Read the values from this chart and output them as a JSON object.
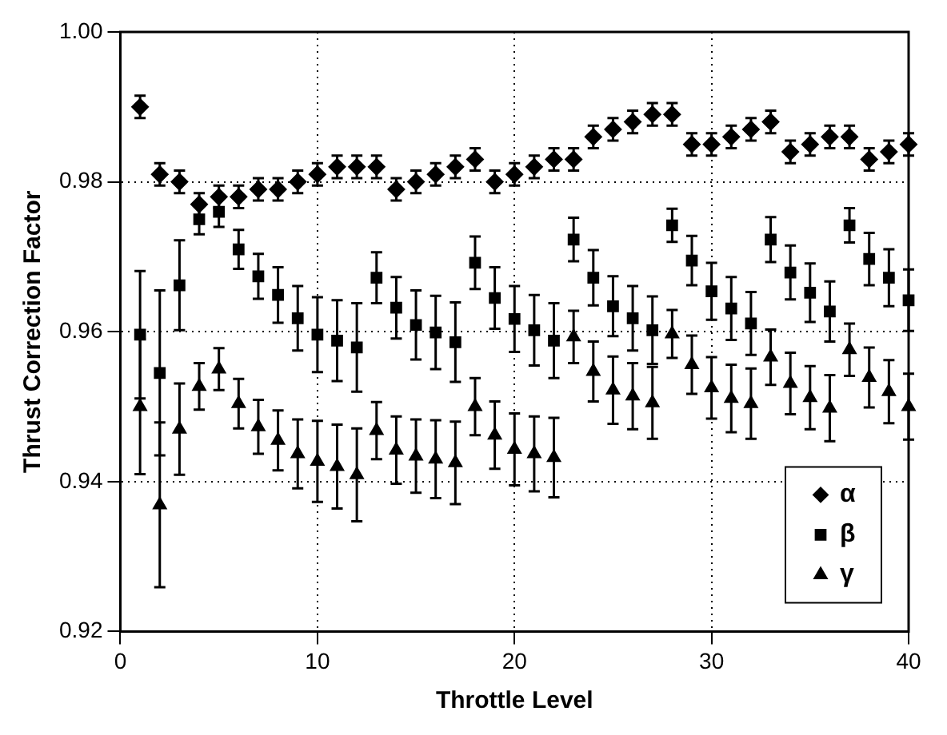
{
  "chart_data": {
    "type": "scatter",
    "xlabel": "Throttle Level",
    "ylabel": "Thrust Correction Factor",
    "x": [
      1,
      2,
      3,
      4,
      5,
      6,
      7,
      8,
      9,
      10,
      11,
      12,
      13,
      14,
      15,
      16,
      17,
      18,
      19,
      20,
      21,
      22,
      23,
      24,
      25,
      26,
      27,
      28,
      29,
      30,
      31,
      32,
      33,
      34,
      35,
      36,
      37,
      38,
      39,
      40
    ],
    "xlim": [
      0,
      40
    ],
    "xticks": [
      0,
      10,
      20,
      30,
      40
    ],
    "ylim": [
      0.92,
      1.0
    ],
    "yticks": [
      0.92,
      0.94,
      0.96,
      0.98,
      {
        "value": 1.0,
        "label": "1.00"
      }
    ],
    "grid": true,
    "legend": "bottom right",
    "series": [
      {
        "name": "α",
        "color": "#000000",
        "marker": "diamond",
        "values": [
          0.99,
          0.981,
          0.98,
          0.977,
          0.978,
          0.978,
          0.979,
          0.979,
          0.98,
          0.981,
          0.982,
          0.982,
          0.982,
          0.979,
          0.98,
          0.981,
          0.982,
          0.983,
          0.98,
          0.981,
          0.982,
          0.983,
          0.983,
          0.986,
          0.987,
          0.988,
          0.989,
          0.989,
          0.985,
          0.985,
          0.986,
          0.987,
          0.988,
          0.984,
          0.985,
          0.986,
          0.986,
          0.983,
          0.984,
          0.985
        ],
        "errors": [
          0.0015,
          0.0015,
          0.0015,
          0.0015,
          0.0015,
          0.0015,
          0.0015,
          0.0015,
          0.0015,
          0.0015,
          0.0015,
          0.0015,
          0.0015,
          0.0015,
          0.0015,
          0.0015,
          0.0015,
          0.0015,
          0.0015,
          0.0015,
          0.0015,
          0.0015,
          0.0015,
          0.0015,
          0.0015,
          0.0015,
          0.0015,
          0.0015,
          0.0015,
          0.0015,
          0.0015,
          0.0015,
          0.0015,
          0.0015,
          0.0015,
          0.0015,
          0.0015,
          0.0015,
          0.0015,
          0.0015
        ]
      },
      {
        "name": "β",
        "color": "#000000",
        "marker": "square",
        "values": [
          0.9596,
          0.9545,
          0.9662,
          0.975,
          0.976,
          0.971,
          0.9674,
          0.9649,
          0.9618,
          0.9596,
          0.9588,
          0.9579,
          0.9672,
          0.9632,
          0.9609,
          0.9599,
          0.9586,
          0.9692,
          0.9645,
          0.9617,
          0.9602,
          0.9588,
          0.9723,
          0.9672,
          0.9634,
          0.9618,
          0.9602,
          0.9742,
          0.9695,
          0.9654,
          0.9631,
          0.9611,
          0.9723,
          0.9679,
          0.9652,
          0.9627,
          0.9742,
          0.9697,
          0.9672,
          0.9642
        ],
        "errors": [
          0.0085,
          0.011,
          0.006,
          0.002,
          0.002,
          0.0026,
          0.003,
          0.0037,
          0.0043,
          0.005,
          0.0054,
          0.0059,
          0.0034,
          0.0041,
          0.0046,
          0.0049,
          0.0053,
          0.0035,
          0.0041,
          0.0044,
          0.0047,
          0.005,
          0.0029,
          0.0037,
          0.004,
          0.0043,
          0.0045,
          0.0022,
          0.0033,
          0.0038,
          0.0042,
          0.0042,
          0.003,
          0.0036,
          0.0039,
          0.004,
          0.0023,
          0.0035,
          0.0038,
          0.0041
        ]
      },
      {
        "name": "γ",
        "color": "#000000",
        "marker": "triangle",
        "values": [
          0.95,
          0.9369,
          0.947,
          0.9527,
          0.955,
          0.9504,
          0.9473,
          0.9455,
          0.9437,
          0.9427,
          0.942,
          0.9409,
          0.9468,
          0.9442,
          0.9434,
          0.943,
          0.9425,
          0.95,
          0.9462,
          0.9443,
          0.9437,
          0.9432,
          0.9593,
          0.9547,
          0.9522,
          0.9514,
          0.9505,
          0.9597,
          0.9556,
          0.9525,
          0.9511,
          0.9504,
          0.9566,
          0.9531,
          0.9512,
          0.9498,
          0.9576,
          0.9539,
          0.952,
          0.95
        ],
        "errors": [
          0.009,
          0.011,
          0.0061,
          0.0031,
          0.0028,
          0.0033,
          0.0036,
          0.004,
          0.0046,
          0.0054,
          0.0056,
          0.0062,
          0.0038,
          0.0045,
          0.0049,
          0.0052,
          0.0055,
          0.0038,
          0.0045,
          0.0048,
          0.005,
          0.0053,
          0.0035,
          0.004,
          0.0045,
          0.0044,
          0.0048,
          0.0032,
          0.0039,
          0.0041,
          0.0045,
          0.0047,
          0.0037,
          0.0041,
          0.0042,
          0.0044,
          0.0035,
          0.004,
          0.0042,
          0.0044
        ]
      }
    ]
  }
}
